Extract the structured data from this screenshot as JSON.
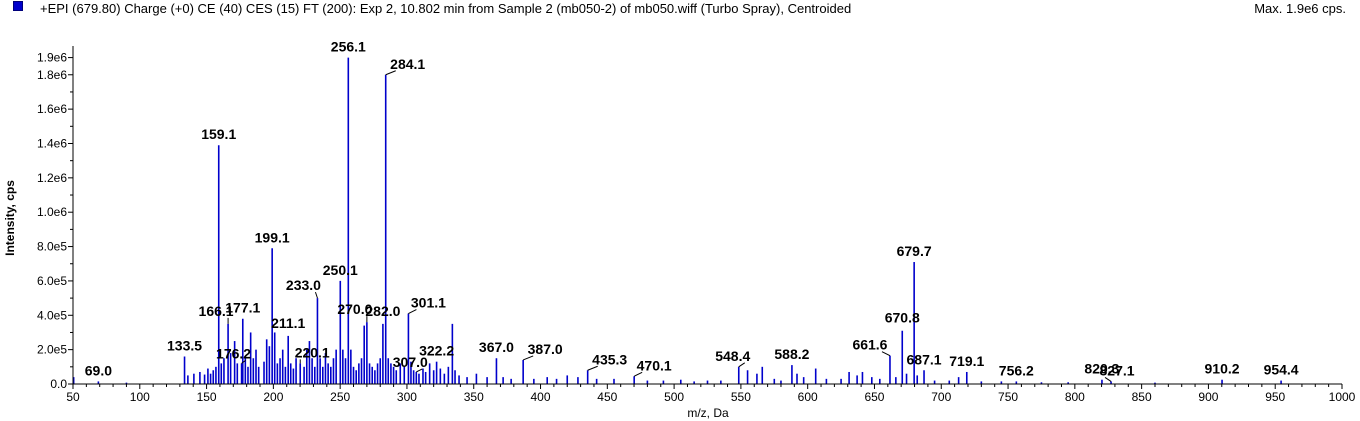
{
  "header": {
    "title": "+EPI (679.80) Charge (+0) CE (40) CES (15) FT (200): Exp 2, 10.802 min from Sample 2 (mb050-2) of mb050.wiff (Turbo Spray), Centroided",
    "max_label": "Max. 1.9e6 cps."
  },
  "colors": {
    "series": "#0000cc",
    "axis": "#000000"
  },
  "chart_data": {
    "type": "bar",
    "xlabel": "m/z, Da",
    "ylabel": "Intensity, cps",
    "xlim": [
      50,
      1000
    ],
    "ylim": [
      0,
      1950000.0
    ],
    "grid": false,
    "x_ticks": [
      50,
      100,
      150,
      200,
      250,
      300,
      350,
      400,
      450,
      500,
      550,
      600,
      650,
      700,
      750,
      800,
      850,
      900,
      950,
      1000
    ],
    "x_tick_labels": [
      "50",
      "100",
      "150",
      "200",
      "250",
      "300",
      "350",
      "400",
      "450",
      "500",
      "550",
      "600",
      "650",
      "700",
      "750",
      "800",
      "850",
      "900",
      "950",
      "1000"
    ],
    "y_ticks": [
      0,
      200000,
      400000,
      600000,
      800000,
      1000000,
      1200000,
      1400000,
      1600000,
      1800000,
      1900000
    ],
    "y_tick_labels": [
      "0.0",
      "2.0e5",
      "4.0e5",
      "6.0e5",
      "8.0e5",
      "1.0e6",
      "1.2e6",
      "1.4e6",
      "1.6e6",
      "1.8e6",
      "1.9e6"
    ],
    "peaks": [
      {
        "mz": 50.5,
        "intensity": 40000
      },
      {
        "mz": 69.0,
        "intensity": 15000,
        "label": "69.0"
      },
      {
        "mz": 90.0,
        "intensity": 8000
      },
      {
        "mz": 133.5,
        "intensity": 160000,
        "label": "133.5"
      },
      {
        "mz": 136.0,
        "intensity": 50000
      },
      {
        "mz": 140.5,
        "intensity": 60000
      },
      {
        "mz": 145.0,
        "intensity": 70000
      },
      {
        "mz": 148.5,
        "intensity": 55000
      },
      {
        "mz": 151.0,
        "intensity": 90000
      },
      {
        "mz": 153.0,
        "intensity": 60000
      },
      {
        "mz": 155.0,
        "intensity": 80000
      },
      {
        "mz": 157.0,
        "intensity": 100000
      },
      {
        "mz": 159.1,
        "intensity": 1390000,
        "label": "159.1"
      },
      {
        "mz": 161.0,
        "intensity": 120000
      },
      {
        "mz": 163.0,
        "intensity": 150000
      },
      {
        "mz": 166.1,
        "intensity": 350000,
        "label": "166.1"
      },
      {
        "mz": 168.0,
        "intensity": 180000
      },
      {
        "mz": 171.0,
        "intensity": 250000
      },
      {
        "mz": 173.0,
        "intensity": 120000
      },
      {
        "mz": 176.2,
        "intensity": 120000,
        "label": "176.2"
      },
      {
        "mz": 177.1,
        "intensity": 380000,
        "label": "177.1"
      },
      {
        "mz": 179.0,
        "intensity": 150000
      },
      {
        "mz": 181.0,
        "intensity": 100000
      },
      {
        "mz": 183.0,
        "intensity": 300000
      },
      {
        "mz": 185.0,
        "intensity": 150000
      },
      {
        "mz": 187.0,
        "intensity": 200000
      },
      {
        "mz": 189.0,
        "intensity": 100000
      },
      {
        "mz": 193.0,
        "intensity": 130000
      },
      {
        "mz": 195.0,
        "intensity": 260000
      },
      {
        "mz": 197.0,
        "intensity": 220000
      },
      {
        "mz": 199.1,
        "intensity": 790000,
        "label": "199.1"
      },
      {
        "mz": 201.0,
        "intensity": 300000
      },
      {
        "mz": 203.0,
        "intensity": 120000
      },
      {
        "mz": 205.0,
        "intensity": 150000
      },
      {
        "mz": 207.0,
        "intensity": 200000
      },
      {
        "mz": 209.0,
        "intensity": 100000
      },
      {
        "mz": 211.1,
        "intensity": 280000,
        "label": "211.1"
      },
      {
        "mz": 213.0,
        "intensity": 120000
      },
      {
        "mz": 215.0,
        "intensity": 90000
      },
      {
        "mz": 217.0,
        "intensity": 150000
      },
      {
        "mz": 220.1,
        "intensity": 120000,
        "label": "220.1"
      },
      {
        "mz": 223.0,
        "intensity": 100000
      },
      {
        "mz": 225.0,
        "intensity": 200000
      },
      {
        "mz": 227.0,
        "intensity": 250000
      },
      {
        "mz": 229.0,
        "intensity": 150000
      },
      {
        "mz": 231.0,
        "intensity": 100000
      },
      {
        "mz": 233.0,
        "intensity": 500000,
        "label": "233.0"
      },
      {
        "mz": 235.0,
        "intensity": 150000
      },
      {
        "mz": 237.0,
        "intensity": 100000
      },
      {
        "mz": 239.0,
        "intensity": 180000
      },
      {
        "mz": 241.0,
        "intensity": 120000
      },
      {
        "mz": 243.0,
        "intensity": 100000
      },
      {
        "mz": 245.0,
        "intensity": 150000
      },
      {
        "mz": 247.0,
        "intensity": 200000
      },
      {
        "mz": 250.1,
        "intensity": 600000,
        "label": "250.1"
      },
      {
        "mz": 252.0,
        "intensity": 200000
      },
      {
        "mz": 254.0,
        "intensity": 150000
      },
      {
        "mz": 256.1,
        "intensity": 1900000,
        "label": "256.1"
      },
      {
        "mz": 258.0,
        "intensity": 200000
      },
      {
        "mz": 260.0,
        "intensity": 100000
      },
      {
        "mz": 262.0,
        "intensity": 80000
      },
      {
        "mz": 264.0,
        "intensity": 120000
      },
      {
        "mz": 266.0,
        "intensity": 150000
      },
      {
        "mz": 268.0,
        "intensity": 340000
      },
      {
        "mz": 270.0,
        "intensity": 360000,
        "label": "270.0"
      },
      {
        "mz": 272.0,
        "intensity": 120000
      },
      {
        "mz": 274.0,
        "intensity": 100000
      },
      {
        "mz": 276.0,
        "intensity": 80000
      },
      {
        "mz": 278.0,
        "intensity": 120000
      },
      {
        "mz": 280.0,
        "intensity": 150000
      },
      {
        "mz": 282.0,
        "intensity": 350000,
        "label": "282.0"
      },
      {
        "mz": 284.1,
        "intensity": 1800000,
        "label": "284.1"
      },
      {
        "mz": 286.0,
        "intensity": 150000
      },
      {
        "mz": 288.0,
        "intensity": 120000
      },
      {
        "mz": 290.0,
        "intensity": 100000
      },
      {
        "mz": 292.0,
        "intensity": 80000
      },
      {
        "mz": 295.0,
        "intensity": 120000
      },
      {
        "mz": 298.0,
        "intensity": 100000
      },
      {
        "mz": 301.1,
        "intensity": 410000,
        "label": "301.1"
      },
      {
        "mz": 303.0,
        "intensity": 130000
      },
      {
        "mz": 305.0,
        "intensity": 80000
      },
      {
        "mz": 307.0,
        "intensity": 70000,
        "label": "307.0"
      },
      {
        "mz": 309.0,
        "intensity": 60000
      },
      {
        "mz": 312.0,
        "intensity": 90000
      },
      {
        "mz": 314.0,
        "intensity": 70000
      },
      {
        "mz": 317.0,
        "intensity": 120000
      },
      {
        "mz": 320.0,
        "intensity": 80000
      },
      {
        "mz": 322.2,
        "intensity": 130000,
        "label": "322.2"
      },
      {
        "mz": 325.0,
        "intensity": 90000
      },
      {
        "mz": 328.0,
        "intensity": 60000
      },
      {
        "mz": 331.0,
        "intensity": 100000
      },
      {
        "mz": 334.0,
        "intensity": 350000
      },
      {
        "mz": 336.0,
        "intensity": 80000
      },
      {
        "mz": 339.0,
        "intensity": 50000
      },
      {
        "mz": 345.0,
        "intensity": 40000
      },
      {
        "mz": 352.0,
        "intensity": 60000
      },
      {
        "mz": 360.0,
        "intensity": 40000
      },
      {
        "mz": 367.0,
        "intensity": 150000,
        "label": "367.0"
      },
      {
        "mz": 372.0,
        "intensity": 40000
      },
      {
        "mz": 378.0,
        "intensity": 30000
      },
      {
        "mz": 387.0,
        "intensity": 140000,
        "label": "387.0"
      },
      {
        "mz": 395.0,
        "intensity": 30000
      },
      {
        "mz": 405.0,
        "intensity": 40000
      },
      {
        "mz": 412.0,
        "intensity": 30000
      },
      {
        "mz": 420.0,
        "intensity": 50000
      },
      {
        "mz": 428.0,
        "intensity": 40000
      },
      {
        "mz": 435.3,
        "intensity": 80000,
        "label": "435.3"
      },
      {
        "mz": 442.0,
        "intensity": 30000
      },
      {
        "mz": 455.0,
        "intensity": 30000
      },
      {
        "mz": 470.1,
        "intensity": 45000,
        "label": "470.1"
      },
      {
        "mz": 480.0,
        "intensity": 20000
      },
      {
        "mz": 492.0,
        "intensity": 20000
      },
      {
        "mz": 505.0,
        "intensity": 25000
      },
      {
        "mz": 515.0,
        "intensity": 15000
      },
      {
        "mz": 525.0,
        "intensity": 20000
      },
      {
        "mz": 535.0,
        "intensity": 20000
      },
      {
        "mz": 548.4,
        "intensity": 100000,
        "label": "548.4"
      },
      {
        "mz": 555.0,
        "intensity": 80000
      },
      {
        "mz": 562.0,
        "intensity": 60000
      },
      {
        "mz": 566.0,
        "intensity": 100000
      },
      {
        "mz": 575.0,
        "intensity": 30000
      },
      {
        "mz": 580.0,
        "intensity": 20000
      },
      {
        "mz": 588.2,
        "intensity": 110000,
        "label": "588.2"
      },
      {
        "mz": 592.0,
        "intensity": 60000
      },
      {
        "mz": 597.0,
        "intensity": 40000
      },
      {
        "mz": 606.0,
        "intensity": 90000
      },
      {
        "mz": 614.0,
        "intensity": 30000
      },
      {
        "mz": 625.0,
        "intensity": 30000
      },
      {
        "mz": 631.0,
        "intensity": 70000
      },
      {
        "mz": 637.0,
        "intensity": 50000
      },
      {
        "mz": 641.0,
        "intensity": 70000
      },
      {
        "mz": 648.0,
        "intensity": 40000
      },
      {
        "mz": 654.0,
        "intensity": 30000
      },
      {
        "mz": 661.6,
        "intensity": 165000,
        "label": "661.6"
      },
      {
        "mz": 666.0,
        "intensity": 40000
      },
      {
        "mz": 670.8,
        "intensity": 310000,
        "label": "670.8"
      },
      {
        "mz": 674.0,
        "intensity": 60000
      },
      {
        "mz": 679.7,
        "intensity": 710000,
        "label": "679.7"
      },
      {
        "mz": 682.0,
        "intensity": 50000
      },
      {
        "mz": 687.1,
        "intensity": 80000,
        "label": "687.1"
      },
      {
        "mz": 695.0,
        "intensity": 20000
      },
      {
        "mz": 706.0,
        "intensity": 20000
      },
      {
        "mz": 713.0,
        "intensity": 40000
      },
      {
        "mz": 719.1,
        "intensity": 70000,
        "label": "719.1"
      },
      {
        "mz": 730.0,
        "intensity": 15000
      },
      {
        "mz": 745.0,
        "intensity": 15000
      },
      {
        "mz": 756.2,
        "intensity": 15000,
        "label": "756.2"
      },
      {
        "mz": 775.0,
        "intensity": 10000
      },
      {
        "mz": 795.0,
        "intensity": 10000
      },
      {
        "mz": 820.3,
        "intensity": 25000,
        "label": "820.3"
      },
      {
        "mz": 827.1,
        "intensity": 15000,
        "label": "827.1"
      },
      {
        "mz": 860.0,
        "intensity": 8000
      },
      {
        "mz": 910.2,
        "intensity": 25000,
        "label": "910.2"
      },
      {
        "mz": 954.4,
        "intensity": 20000,
        "label": "954.4"
      }
    ],
    "label_offsets": {
      "69.0": [
        0,
        -6
      ],
      "133.5": [
        0,
        -6
      ],
      "159.1": [
        0,
        -6
      ],
      "166.1": [
        -12,
        -8
      ],
      "176.2": [
        -8,
        -5
      ],
      "177.1": [
        0,
        -6
      ],
      "199.1": [
        0,
        -6
      ],
      "211.1": [
        0,
        -8
      ],
      "220.1": [
        12,
        -6
      ],
      "233.0": [
        -14,
        -8
      ],
      "250.1": [
        0,
        -6
      ],
      "256.1": [
        0,
        -6
      ],
      "270.0": [
        -12,
        -8
      ],
      "282.0": [
        0,
        -8
      ],
      "284.1": [
        22,
        -6
      ],
      "301.1": [
        20,
        -6
      ],
      "307.0": [
        -6,
        -5
      ],
      "322.2": [
        0,
        -6
      ],
      "367.0": [
        0,
        -6
      ],
      "387.0": [
        22,
        -6
      ],
      "435.3": [
        22,
        -6
      ],
      "470.1": [
        20,
        -6
      ],
      "548.4": [
        -6,
        -6
      ],
      "588.2": [
        0,
        -6
      ],
      "661.6": [
        -20,
        -6
      ],
      "670.8": [
        0,
        -8
      ],
      "679.7": [
        0,
        -6
      ],
      "687.1": [
        0,
        -6
      ],
      "719.1": [
        0,
        -6
      ],
      "756.2": [
        0,
        -6
      ],
      "820.3": [
        0,
        -6
      ],
      "827.1": [
        6,
        -6
      ],
      "910.2": [
        0,
        -6
      ],
      "954.4": [
        0,
        -6
      ]
    }
  }
}
